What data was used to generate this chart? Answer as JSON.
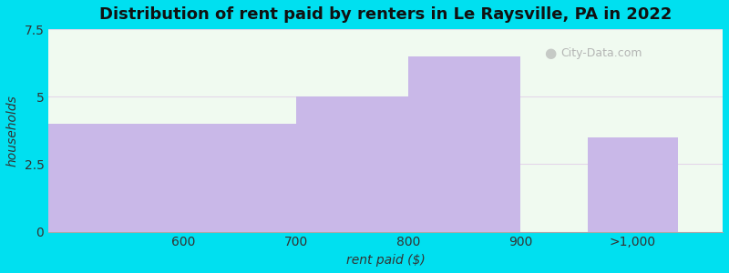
{
  "categories": [
    "600",
    "700",
    "800",
    "900",
    ">1,000"
  ],
  "values": [
    4,
    5,
    6.5,
    0,
    3.5
  ],
  "bar_color": "#c9b8e8",
  "title": "Distribution of rent paid by renters in Le Raysville, PA in 2022",
  "xlabel": "rent paid ($)",
  "ylabel": "households",
  "ylim": [
    0,
    7.5
  ],
  "yticks": [
    0,
    2.5,
    5,
    7.5
  ],
  "background_outer": "#00e0f0",
  "background_plot_top": "#f0faf0",
  "background_plot_bottom": "#e8f8f0",
  "title_fontsize": 13,
  "axis_label_fontsize": 10,
  "tick_fontsize": 10,
  "watermark": "City-Data.com",
  "bar_left": [
    480,
    700,
    800,
    900,
    960
  ],
  "bar_width": [
    220,
    100,
    100,
    0,
    80
  ],
  "xtick_positions": [
    600,
    700,
    800,
    900,
    1000
  ],
  "xtick_labels": [
    "600",
    "700",
    "800",
    "900",
    ">1,000"
  ],
  "xlim": [
    480,
    1080
  ]
}
